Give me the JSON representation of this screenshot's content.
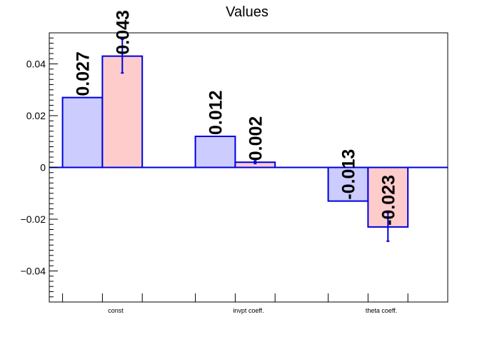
{
  "chart_data": {
    "type": "bar",
    "title": "Values",
    "xlabel": "",
    "ylabel": "",
    "categories": [
      "const",
      "invpt coeff.",
      "theta coeff."
    ],
    "ylim": [
      -0.052,
      0.052
    ],
    "yticks": [
      -0.04,
      -0.02,
      0,
      0.02,
      0.04
    ],
    "ytick_labels": [
      "−0.04",
      "−0.02",
      "0",
      "0.02",
      "0.04"
    ],
    "grid": false,
    "legend": "none",
    "series": [
      {
        "color": "#ccccff",
        "edge": "#0000dd",
        "values": [
          0.027,
          0.012,
          -0.013
        ],
        "labels": [
          "0.027",
          "0.012",
          "-0.013"
        ],
        "errors": [
          0,
          0,
          0
        ]
      },
      {
        "color": "#ffcccc",
        "edge": "#0000dd",
        "values": [
          0.043,
          0.002,
          -0.023
        ],
        "labels": [
          "0.043",
          "0.002",
          "-0.023"
        ],
        "errors": [
          0.0065,
          0.0005,
          0.0055
        ]
      }
    ]
  }
}
